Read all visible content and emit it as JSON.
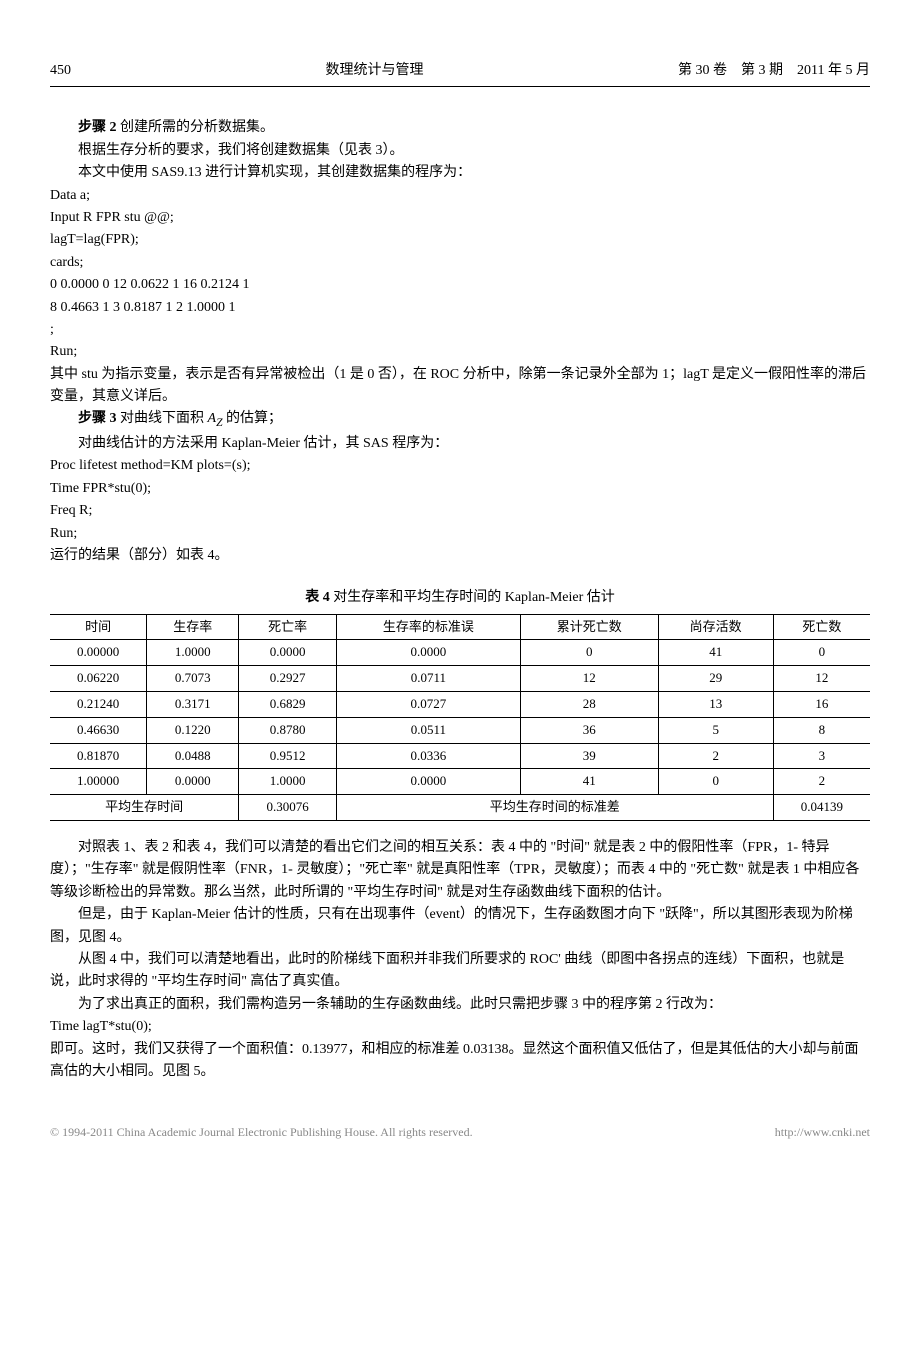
{
  "header": {
    "page": "450",
    "journal": "数理统计与管理",
    "issue": "第 30 卷　第 3 期　2011 年 5 月"
  },
  "step2": {
    "title": "步骤 2",
    "desc": "创建所需的分析数据集。",
    "p1": "根据生存分析的要求，我们将创建数据集（见表 3）。",
    "p2": "本文中使用 SAS9.13 进行计算机实现，其创建数据集的程序为："
  },
  "code1": {
    "l1": "Data a;",
    "l2": "Input R FPR stu @@;",
    "l3": "lagT=lag(FPR);",
    "l4": "cards;",
    "l5": "0 0.0000 0 12 0.0622 1 16 0.2124 1",
    "l6": "8 0.4663 1 3 0.8187 1 2 1.0000 1",
    "l7": ";",
    "l8": "Run;"
  },
  "after_code1": {
    "p1": "其中 stu 为指示变量，表示是否有异常被检出（1 是 0 否），在 ROC 分析中，除第一条记录外全部为 1；lagT 是定义一假阳性率的滞后变量，其意义详后。"
  },
  "step3": {
    "title": "步骤 3",
    "desc_pre": "对曲线下面积 ",
    "desc_var": "A_Z",
    "desc_post": " 的估算；",
    "p1": "对曲线估计的方法采用 Kaplan-Meier 估计，其 SAS 程序为："
  },
  "code2": {
    "l1": "Proc lifetest method=KM plots=(s);",
    "l2": "Time FPR*stu(0);",
    "l3": "Freq R;",
    "l4": "Run;"
  },
  "after_code2": {
    "p1": "运行的结果（部分）如表 4。"
  },
  "table4": {
    "caption_bold": "表 4",
    "caption_rest": "对生存率和平均生存时间的 Kaplan-Meier 估计",
    "headers": [
      "时间",
      "生存率",
      "死亡率",
      "生存率的标准误",
      "累计死亡数",
      "尚存活数",
      "死亡数"
    ],
    "rows": [
      [
        "0.00000",
        "1.0000",
        "0.0000",
        "0.0000",
        "0",
        "41",
        "0"
      ],
      [
        "0.06220",
        "0.7073",
        "0.2927",
        "0.0711",
        "12",
        "29",
        "12"
      ],
      [
        "0.21240",
        "0.3171",
        "0.6829",
        "0.0727",
        "28",
        "13",
        "16"
      ],
      [
        "0.46630",
        "0.1220",
        "0.8780",
        "0.0511",
        "36",
        "5",
        "8"
      ],
      [
        "0.81870",
        "0.0488",
        "0.9512",
        "0.0336",
        "39",
        "2",
        "3"
      ],
      [
        "1.00000",
        "0.0000",
        "1.0000",
        "0.0000",
        "41",
        "0",
        "2"
      ]
    ],
    "footer": {
      "label1": "平均生存时间",
      "val1": "0.30076",
      "label2": "平均生存时间的标准差",
      "val2": "0.04139"
    }
  },
  "paragraphs": {
    "p1": "对照表 1、表 2 和表 4，我们可以清楚的看出它们之间的相互关系：表 4 中的 \"时间\" 就是表 2 中的假阳性率（FPR，1- 特异度）；\"生存率\" 就是假阴性率（FNR，1- 灵敏度）；\"死亡率\" 就是真阳性率（TPR，灵敏度）；而表 4 中的 \"死亡数\" 就是表 1 中相应各等级诊断检出的异常数。那么当然，此时所谓的 \"平均生存时间\" 就是对生存函数曲线下面积的估计。",
    "p2": "但是，由于 Kaplan-Meier 估计的性质，只有在出现事件（event）的情况下，生存函数图才向下 \"跃降\"，所以其图形表现为阶梯图，见图 4。",
    "p3": "从图 4 中，我们可以清楚地看出，此时的阶梯线下面积并非我们所要求的 ROC' 曲线（即图中各拐点的连线）下面积，也就是说，此时求得的 \"平均生存时间\" 高估了真实值。",
    "p4": "为了求出真正的面积，我们需构造另一条辅助的生存函数曲线。此时只需把步骤 3 中的程序第 2 行改为："
  },
  "code3": {
    "l1": "Time lagT*stu(0);"
  },
  "after_code3": {
    "p1": "即可。这时，我们又获得了一个面积值：0.13977，和相应的标准差 0.03138。显然这个面积值又低估了，但是其低估的大小却与前面高估的大小相同。见图 5。"
  },
  "footer": {
    "copyright": "© 1994-2011 China Academic Journal Electronic Publishing House. All rights reserved.",
    "url": "http://www.cnki.net"
  }
}
